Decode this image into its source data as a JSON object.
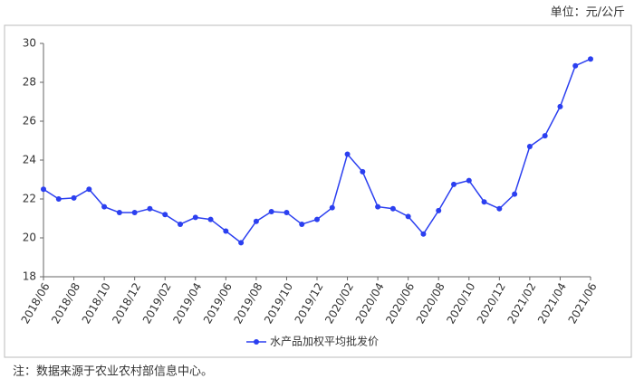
{
  "chart_data": {
    "type": "line",
    "unit": "单位：元/公斤",
    "note": "注：数据来源于农业农村部信息中心。",
    "categories": [
      "2018/06",
      null,
      "2018/08",
      null,
      "2018/10",
      null,
      "2018/12",
      null,
      "2019/02",
      null,
      "2019/04",
      null,
      "2019/06",
      null,
      "2019/08",
      null,
      "2019/10",
      null,
      "2019/12",
      null,
      "2020/02",
      null,
      "2020/04",
      null,
      "2020/06",
      null,
      "2020/08",
      null,
      "2020/10",
      null,
      "2020/12",
      null,
      "2021/02",
      null,
      "2021/04",
      null,
      "2021/06"
    ],
    "series": [
      {
        "name": "水产品加权平均批发价",
        "color": "#2b3ff0",
        "values": [
          22.5,
          22.0,
          22.05,
          22.5,
          21.6,
          21.3,
          21.3,
          21.5,
          21.2,
          20.7,
          21.05,
          20.95,
          20.35,
          19.75,
          20.85,
          21.35,
          21.3,
          20.7,
          20.95,
          21.55,
          24.3,
          23.4,
          21.6,
          21.5,
          21.1,
          20.2,
          21.4,
          22.75,
          22.95,
          21.85,
          21.5,
          22.25,
          24.7,
          25.25,
          26.75,
          28.85,
          29.2
        ]
      }
    ],
    "ylim": [
      18,
      30
    ],
    "yticks": [
      18,
      20,
      22,
      24,
      26,
      28,
      30
    ],
    "grid": false
  }
}
